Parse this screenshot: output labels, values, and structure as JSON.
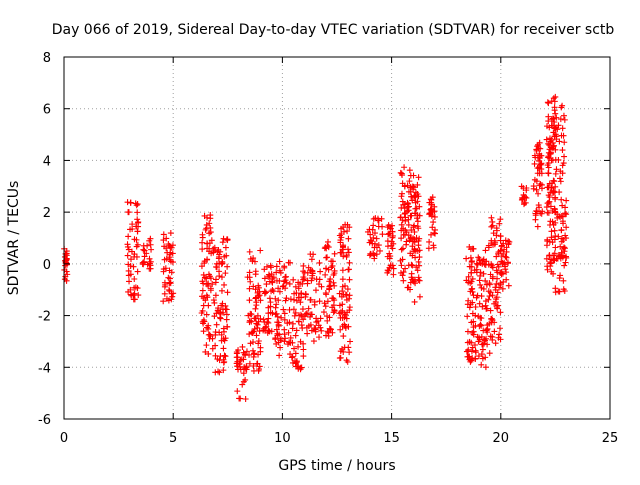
{
  "chart_data": {
    "type": "scatter",
    "title": "Day 066 of 2019, Sidereal Day-to-day VTEC variation (SDTVAR) for receiver sctb",
    "xlabel": "GPS time / hours",
    "ylabel": "SDTVAR / TECUs",
    "xlim": [
      0,
      25
    ],
    "ylim": [
      -6,
      8
    ],
    "xticks": [
      0,
      5,
      10,
      15,
      20,
      25
    ],
    "yticks": [
      -6,
      -4,
      -2,
      0,
      2,
      4,
      6,
      8
    ],
    "grid": true,
    "marker": "+",
    "color": "#ff0000",
    "series": [
      {
        "name": "SDTVAR",
        "clusters": [
          {
            "x": [
              0.0,
              0.15
            ],
            "y": [
              -1.0,
              0.7
            ]
          },
          {
            "x": [
              2.9,
              3.4
            ],
            "y": [
              -1.4,
              2.4
            ]
          },
          {
            "x": [
              3.6,
              4.0
            ],
            "y": [
              -0.2,
              1.0
            ]
          },
          {
            "x": [
              4.5,
              5.0
            ],
            "y": [
              -1.5,
              1.3
            ]
          },
          {
            "x": [
              6.3,
              6.9
            ],
            "y": [
              -3.5,
              1.9
            ]
          },
          {
            "x": [
              6.9,
              7.5
            ],
            "y": [
              -4.3,
              1.2
            ]
          },
          {
            "x": [
              7.9,
              8.4
            ],
            "y": [
              -5.3,
              -3.2
            ]
          },
          {
            "x": [
              8.4,
              9.0
            ],
            "y": [
              -4.2,
              0.6
            ]
          },
          {
            "x": [
              9.1,
              9.7
            ],
            "y": [
              -3.0,
              0.0
            ]
          },
          {
            "x": [
              9.7,
              10.4
            ],
            "y": [
              -3.6,
              0.2
            ]
          },
          {
            "x": [
              10.4,
              11.0
            ],
            "y": [
              -4.1,
              -0.5
            ]
          },
          {
            "x": [
              10.9,
              11.8
            ],
            "y": [
              -3.0,
              0.4
            ]
          },
          {
            "x": [
              11.9,
              12.4
            ],
            "y": [
              -2.8,
              0.9
            ]
          },
          {
            "x": [
              12.6,
              13.1
            ],
            "y": [
              -3.9,
              1.6
            ]
          },
          {
            "x": [
              13.9,
              14.6
            ],
            "y": [
              0.1,
              1.8
            ]
          },
          {
            "x": [
              14.8,
              15.1
            ],
            "y": [
              -0.5,
              1.6
            ]
          },
          {
            "x": [
              15.4,
              15.9
            ],
            "y": [
              -1.2,
              3.8
            ]
          },
          {
            "x": [
              15.9,
              16.3
            ],
            "y": [
              -1.5,
              3.6
            ]
          },
          {
            "x": [
              16.7,
              17.0
            ],
            "y": [
              0.6,
              2.6
            ]
          },
          {
            "x": [
              18.4,
              18.9
            ],
            "y": [
              -3.9,
              0.8
            ]
          },
          {
            "x": [
              18.9,
              19.5
            ],
            "y": [
              -4.0,
              0.9
            ]
          },
          {
            "x": [
              19.5,
              20.0
            ],
            "y": [
              -3.1,
              1.8
            ]
          },
          {
            "x": [
              20.0,
              20.4
            ],
            "y": [
              -1.0,
              1.0
            ]
          },
          {
            "x": [
              20.9,
              21.2
            ],
            "y": [
              2.3,
              3.0
            ]
          },
          {
            "x": [
              21.5,
              21.9
            ],
            "y": [
              1.4,
              4.7
            ]
          },
          {
            "x": [
              22.1,
              22.5
            ],
            "y": [
              -0.6,
              6.6
            ]
          },
          {
            "x": [
              22.4,
              23.0
            ],
            "y": [
              -1.2,
              6.2
            ]
          }
        ]
      }
    ]
  }
}
